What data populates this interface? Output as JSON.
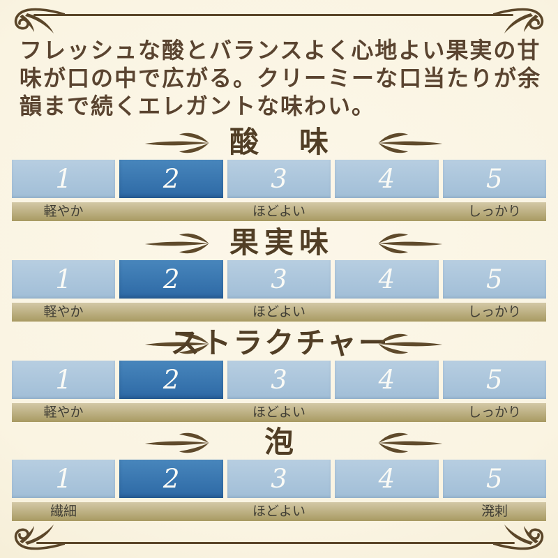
{
  "header": {
    "description_lines": [
      "フレッシュな酸とバランスよく心地よい果実の甘",
      "味が口の中で広がる。クリーミーな口当たりが余",
      "韻まで続くエレガントな味わい。"
    ]
  },
  "scales": [
    {
      "title": "酸味",
      "selected": 2,
      "cells": [
        "1",
        "2",
        "3",
        "4",
        "5"
      ],
      "labels": {
        "left": "軽やか",
        "center": "ほどよい",
        "right": "しっかり"
      }
    },
    {
      "title": "果実味",
      "selected": 2,
      "cells": [
        "1",
        "2",
        "3",
        "4",
        "5"
      ],
      "labels": {
        "left": "軽やか",
        "center": "ほどよい",
        "right": "しっかり"
      }
    },
    {
      "title": "ストラクチャー",
      "selected": 2,
      "cells": [
        "1",
        "2",
        "3",
        "4",
        "5"
      ],
      "labels": {
        "left": "軽やか",
        "center": "ほどよい",
        "right": "しっかり"
      }
    },
    {
      "title": "泡",
      "selected": 2,
      "cells": [
        "1",
        "2",
        "3",
        "4",
        "5"
      ],
      "labels": {
        "left": "繊細",
        "center": "ほどよい",
        "right": "溌剌"
      }
    }
  ],
  "colors": {
    "background": "#faf4e2",
    "frame_brown": "#5b4629",
    "text_brown": "#5a4430",
    "title_brown": "#513e25",
    "cell_blue": "#abc5db",
    "cell_selected_blue": "#3573ad",
    "cell_number_white": "#fbfbf6",
    "label_bar_tan": "#b9ab79",
    "label_text": "#403e35"
  },
  "chart_data": {
    "type": "bar",
    "title": "",
    "xlabel": "",
    "ylabel": "",
    "categories": [
      "酸味",
      "果実味",
      "ストラクチャー",
      "泡"
    ],
    "values": [
      2,
      2,
      2,
      2
    ],
    "scale_range": {
      "min": 1,
      "max": 5
    },
    "scale_endpoint_labels": [
      {
        "category": "酸味",
        "low": "軽やか",
        "mid": "ほどよい",
        "high": "しっかり"
      },
      {
        "category": "果実味",
        "low": "軽やか",
        "mid": "ほどよい",
        "high": "しっかり"
      },
      {
        "category": "ストラクチャー",
        "low": "軽やか",
        "mid": "ほどよい",
        "high": "しっかり"
      },
      {
        "category": "泡",
        "low": "繊細",
        "mid": "ほどよい",
        "high": "溌剌"
      }
    ],
    "legend_position": "none",
    "grid": false
  }
}
